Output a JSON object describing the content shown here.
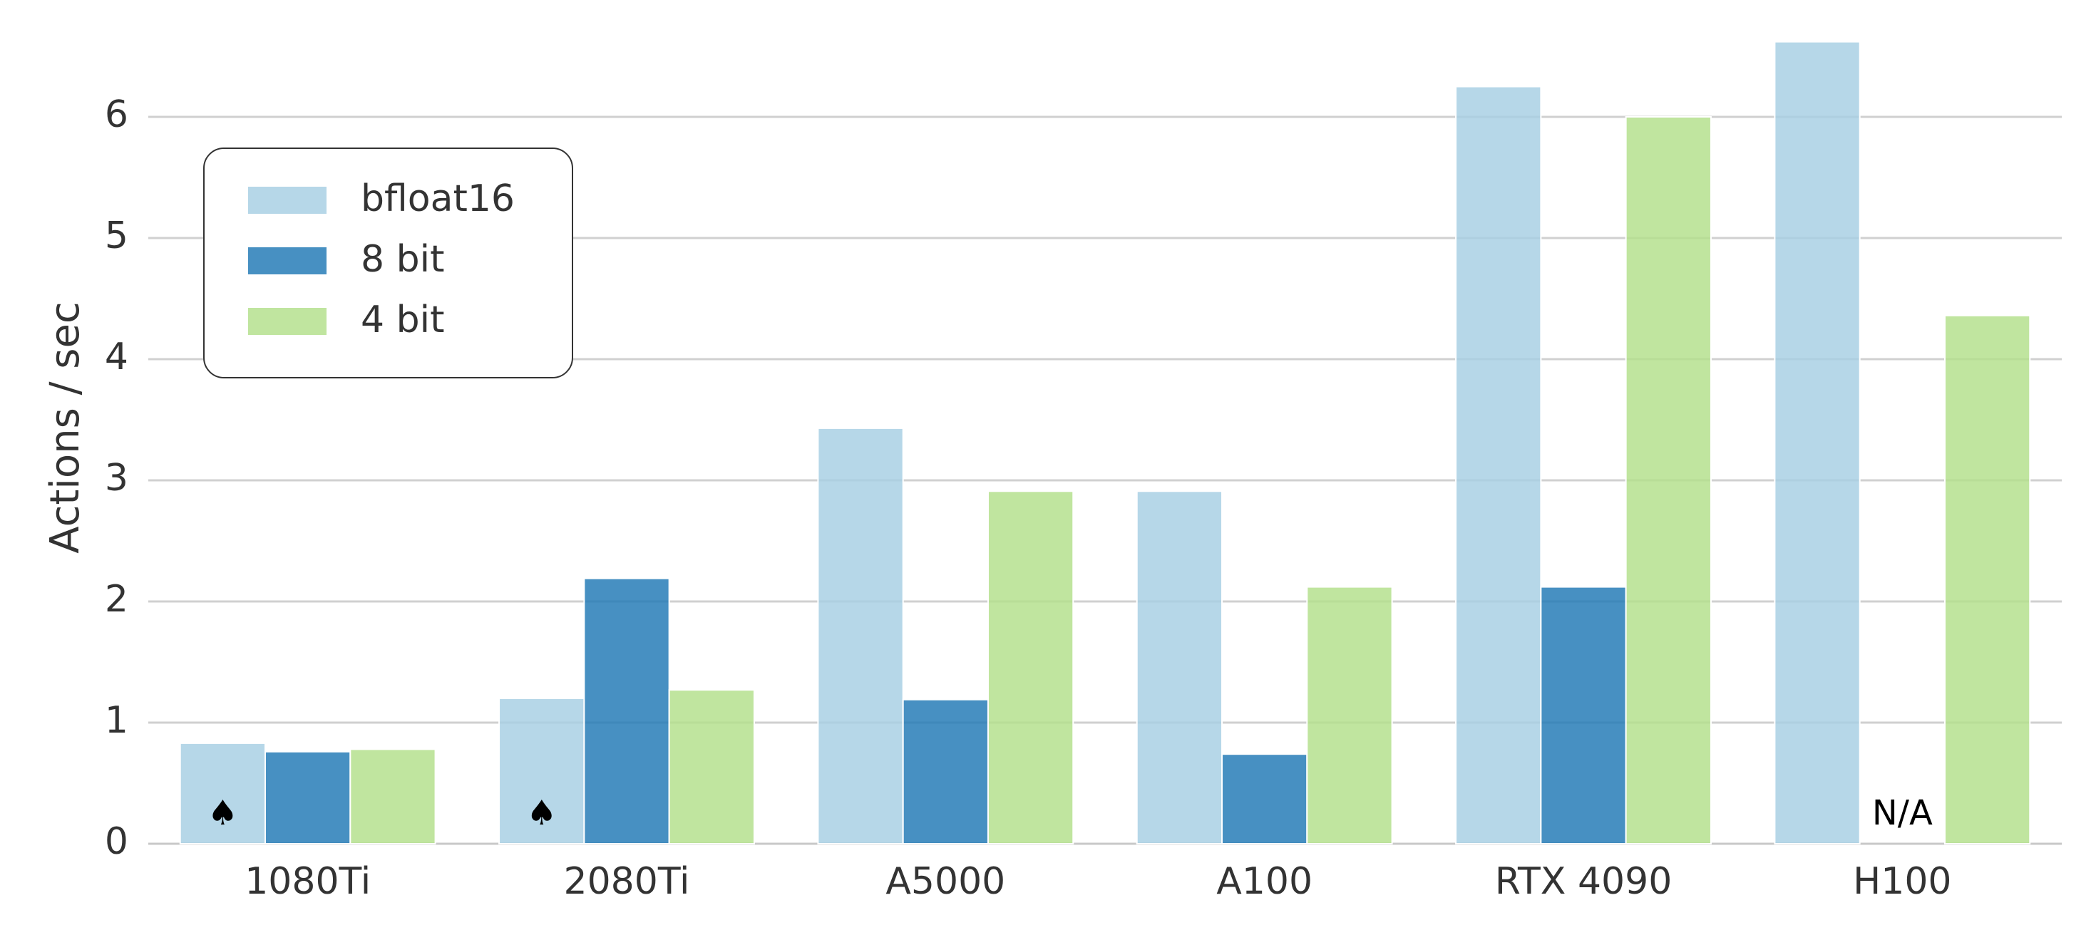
{
  "chart_data": {
    "type": "bar",
    "y_label": "Actions / sec",
    "categories": [
      "1080Ti",
      "2080Ti",
      "A5000",
      "A100",
      "RTX 4090",
      "H100"
    ],
    "series": [
      {
        "name": "bfloat16",
        "color": "#a6cee3",
        "values": [
          0.83,
          1.2,
          3.43,
          2.91,
          6.25,
          6.62
        ]
      },
      {
        "name": "8 bit",
        "color": "#1f78b4",
        "values": [
          0.76,
          2.19,
          1.19,
          0.74,
          2.12,
          null
        ]
      },
      {
        "name": "4 bit",
        "color": "#b2df8a",
        "values": [
          0.78,
          1.27,
          2.91,
          2.12,
          6.0,
          4.36
        ]
      }
    ],
    "annotations": [
      "♠",
      "♠",
      "N/A"
    ],
    "ylim": [
      0,
      6.9
    ],
    "yticks": [
      0,
      1,
      2,
      3,
      4,
      5,
      6
    ],
    "grid": true,
    "legend": "upper left"
  }
}
